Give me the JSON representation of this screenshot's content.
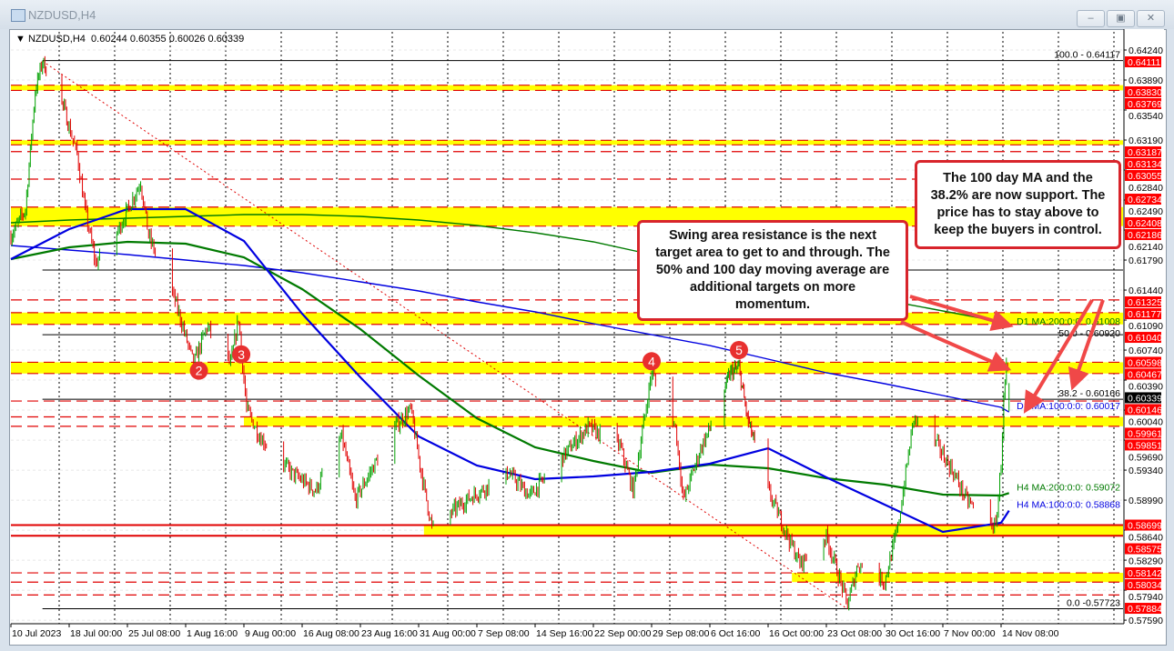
{
  "window": {
    "title": "NZDUSD,H4",
    "buttons": {
      "minimize": "minimize-icon",
      "restore": "restore-icon",
      "close": "close-icon"
    }
  },
  "chart_header": {
    "symbol": "NZDUSD,H4",
    "open": "0.60244",
    "high": "0.60355",
    "low": "0.60026",
    "close": "0.60339"
  },
  "annotations": [
    {
      "text": "Swing area resistance is the next target area to get to and through.  The 50% and 100 day moving average are additional targets on more momentum."
    },
    {
      "text": "The 100 day MA and the 38.2% are now support. The price has to stay above to keep the buyers in control."
    }
  ],
  "chart_data": {
    "type": "candlestick",
    "symbol": "NZDUSD",
    "timeframe": "H4",
    "grid": true,
    "ylim": [
      0.5759,
      0.6424
    ],
    "colors": {
      "up": "#00a000",
      "down": "#e00000",
      "zone": "#ffff00",
      "level": "#e00000",
      "ma_blue": "#0000e0",
      "ma_green": "#007a00",
      "trendline": "#e00000",
      "marker": "#e8302f",
      "price_label": "#ff0000",
      "last_price_label": "#000000"
    },
    "y_ticks": [
      "0.64240",
      "0.63890",
      "0.63540",
      "0.63190",
      "0.62840",
      "0.62490",
      "0.62140",
      "0.61790",
      "0.61440",
      "0.61090",
      "0.60740",
      "0.60390",
      "0.60040",
      "0.59690",
      "0.59340",
      "0.58990",
      "0.58640",
      "0.58290",
      "0.57940",
      "0.57590"
    ],
    "x_ticks": [
      {
        "label": "10 Jul 2023",
        "date": "2023-07-10T00:00"
      },
      {
        "label": "18 Jul 00:00",
        "date": "2023-07-18T00:00"
      },
      {
        "label": "25 Jul 08:00",
        "date": "2023-07-25T08:00"
      },
      {
        "label": "1 Aug 16:00",
        "date": "2023-08-01T16:00"
      },
      {
        "label": "9 Aug 00:00",
        "date": "2023-08-09T00:00"
      },
      {
        "label": "16 Aug 08:00",
        "date": "2023-08-16T08:00"
      },
      {
        "label": "23 Aug 16:00",
        "date": "2023-08-23T16:00"
      },
      {
        "label": "31 Aug 00:00",
        "date": "2023-08-31T00:00"
      },
      {
        "label": "7 Sep 08:00",
        "date": "2023-09-07T08:00"
      },
      {
        "label": "14 Sep 16:00",
        "date": "2023-09-14T16:00"
      },
      {
        "label": "22 Sep 00:00",
        "date": "2023-09-22T00:00"
      },
      {
        "label": "29 Sep 08:00",
        "date": "2023-09-29T08:00"
      },
      {
        "label": "6 Oct 16:00",
        "date": "2023-10-06T16:00"
      },
      {
        "label": "16 Oct 00:00",
        "date": "2023-10-16T00:00"
      },
      {
        "label": "23 Oct 08:00",
        "date": "2023-10-23T08:00"
      },
      {
        "label": "30 Oct 16:00",
        "date": "2023-10-30T16:00"
      },
      {
        "label": "7 Nov 00:00",
        "date": "2023-11-07T00:00"
      },
      {
        "label": "14 Nov 08:00",
        "date": "2023-11-14T08:00"
      }
    ],
    "price_path": [
      [
        "2023-07-10T00:00",
        0.6207
      ],
      [
        "2023-07-12T00:00",
        0.6238
      ],
      [
        "2023-07-13T08:00",
        0.6376
      ],
      [
        "2023-07-14T08:00",
        0.6411
      ],
      [
        "2023-07-17T08:00",
        0.6355
      ],
      [
        "2023-07-19T00:00",
        0.6302
      ],
      [
        "2023-07-20T00:00",
        0.6238
      ],
      [
        "2023-07-21T08:00",
        0.6175
      ],
      [
        "2023-07-24T08:00",
        0.6217
      ],
      [
        "2023-07-27T00:00",
        0.627
      ],
      [
        "2023-07-28T00:00",
        0.6207
      ],
      [
        "2023-07-31T08:00",
        0.6132
      ],
      [
        "2023-08-02T16:00",
        0.6058
      ],
      [
        "2023-08-04T08:00",
        0.6101
      ],
      [
        "2023-08-07T08:00",
        0.6058
      ],
      [
        "2023-08-08T08:00",
        0.6111
      ],
      [
        "2023-08-09T08:00",
        0.6005
      ],
      [
        "2023-08-11T00:00",
        0.5973
      ],
      [
        "2023-08-15T00:00",
        0.5931
      ],
      [
        "2023-08-18T00:00",
        0.591
      ],
      [
        "2023-08-21T08:00",
        0.5973
      ],
      [
        "2023-08-23T00:00",
        0.5899
      ],
      [
        "2023-08-28T00:00",
        0.5984
      ],
      [
        "2023-08-30T00:00",
        0.6005
      ],
      [
        "2023-08-31T08:00",
        0.5931
      ],
      [
        "2023-09-01T16:00",
        0.5867
      ],
      [
        "2023-09-06T00:00",
        0.5899
      ],
      [
        "2023-09-11T08:00",
        0.5931
      ],
      [
        "2023-09-14T00:00",
        0.5904
      ],
      [
        "2023-09-19T08:00",
        0.5963
      ],
      [
        "2023-09-21T08:00",
        0.5984
      ],
      [
        "2023-09-25T08:00",
        0.5963
      ],
      [
        "2023-09-27T00:00",
        0.591
      ],
      [
        "2023-09-29T08:00",
        0.6048
      ],
      [
        "2023-10-02T08:00",
        0.5984
      ],
      [
        "2023-10-03T08:00",
        0.5899
      ],
      [
        "2023-10-05T16:00",
        0.5963
      ],
      [
        "2023-10-10T00:00",
        0.6048
      ],
      [
        "2023-10-11T08:00",
        0.6053
      ],
      [
        "2023-10-12T16:00",
        0.5995
      ],
      [
        "2023-10-16T00:00",
        0.591
      ],
      [
        "2023-10-18T00:00",
        0.5867
      ],
      [
        "2023-10-20T00:00",
        0.5825
      ],
      [
        "2023-10-23T08:00",
        0.5857
      ],
      [
        "2023-10-26T00:00",
        0.5777
      ],
      [
        "2023-10-27T08:00",
        0.5825
      ],
      [
        "2023-10-30T16:00",
        0.5804
      ],
      [
        "2023-11-01T08:00",
        0.5867
      ],
      [
        "2023-11-03T08:00",
        0.5995
      ],
      [
        "2023-11-06T08:00",
        0.5963
      ],
      [
        "2023-11-08T08:00",
        0.5931
      ],
      [
        "2023-11-10T00:00",
        0.5899
      ],
      [
        "2023-11-13T16:00",
        0.5867
      ],
      [
        "2023-11-14T08:00",
        0.5942
      ],
      [
        "2023-11-14T16:00",
        0.6016
      ],
      [
        "2023-11-15T00:00",
        0.6053
      ],
      [
        "2023-11-15T08:00",
        0.60339
      ]
    ],
    "last_price": "0.60339",
    "fib_levels": [
      {
        "price": 0.64117,
        "label": "100.0 - 0.64117"
      },
      {
        "price": 0.61674,
        "label": ""
      },
      {
        "price": 0.6092,
        "label": "50.0 - 0.60920"
      },
      {
        "price": 0.60166,
        "label": "38.2 - 0.60166"
      },
      {
        "price": 0.57723,
        "label": "0.0 -0.57723"
      }
    ],
    "fib_from": "2023-07-14T08:00",
    "zones": [
      {
        "top": 0.6383,
        "bottom": 0.63769,
        "from": "2023-07-10T00:00"
      },
      {
        "top": 0.63187,
        "bottom": 0.63134,
        "from": "2023-07-10T00:00"
      },
      {
        "top": 0.62408,
        "bottom": 0.62186,
        "from": "2023-07-10T00:00"
      },
      {
        "top": 0.61177,
        "bottom": 0.6104,
        "from": "2023-07-10T00:00"
      },
      {
        "top": 0.60598,
        "bottom": 0.60467,
        "from": "2023-07-10T00:00"
      },
      {
        "top": 0.59961,
        "bottom": 0.59851,
        "from": "2023-08-09T00:00"
      },
      {
        "top": 0.58699,
        "bottom": 0.58575,
        "from": "2023-08-31T16:00"
      },
      {
        "top": 0.58142,
        "bottom": 0.58034,
        "from": "2023-10-19T00:00"
      }
    ],
    "horizontal_levels": [
      {
        "price": 0.64111,
        "label": "0.64111",
        "style": "none"
      },
      {
        "price": 0.6383,
        "label": "0.63830",
        "style": "dashed"
      },
      {
        "price": 0.63769,
        "label": "0.63769",
        "style": "dashed"
      },
      {
        "price": 0.63187,
        "label": "0.63187",
        "style": "dashed"
      },
      {
        "price": 0.63134,
        "label": "0.63134",
        "style": "dashed"
      },
      {
        "price": 0.63055,
        "label": "0.63055",
        "style": "dashed"
      },
      {
        "price": 0.62734,
        "label": "0.62734",
        "style": "dashed"
      },
      {
        "price": 0.62408,
        "label": "0.62408",
        "style": "dashed"
      },
      {
        "price": 0.62186,
        "label": "0.62186",
        "style": "dashed"
      },
      {
        "price": 0.61325,
        "label": "0.61325",
        "style": "dashed"
      },
      {
        "price": 0.61177,
        "label": "0.61177",
        "style": "dashed"
      },
      {
        "price": 0.6104,
        "label": "0.61040",
        "style": "dashed"
      },
      {
        "price": 0.60598,
        "label": "0.60598",
        "style": "dashed"
      },
      {
        "price": 0.60467,
        "label": "0.60467",
        "style": "dashed"
      },
      {
        "price": 0.60146,
        "label": "0.60146",
        "style": "dashed"
      },
      {
        "price": 0.59961,
        "label": "0.59961",
        "style": "dashed"
      },
      {
        "price": 0.59851,
        "label": "0.59851",
        "style": "dashed"
      },
      {
        "price": 0.58699,
        "label": "0.58699",
        "style": "solid"
      },
      {
        "price": 0.58575,
        "label": "0.58575",
        "style": "solid"
      },
      {
        "price": 0.58142,
        "label": "0.58142",
        "style": "dashed"
      },
      {
        "price": 0.58034,
        "label": "0.58034",
        "style": "dashed"
      },
      {
        "price": 0.57884,
        "label": "0.57884",
        "style": "dashed"
      }
    ],
    "moving_averages": [
      {
        "label": "D1 MA:200:0:0: 0.61008",
        "color": "#007a00",
        "weight": "thin",
        "values": [
          0.62225,
          0.62257,
          0.62278,
          0.62299,
          0.62321,
          0.62321,
          0.62299,
          0.62257,
          0.62193,
          0.62109,
          0.62002,
          0.61854,
          0.61716,
          0.61589,
          0.61451,
          0.61324,
          0.61197,
          0.61069,
          0.61008
        ]
      },
      {
        "label": "D1 MA:100:0:0: 0.60017",
        "color": "#0000e0",
        "weight": "thin",
        "values": [
          0.6196,
          0.61907,
          0.61854,
          0.6179,
          0.61727,
          0.61642,
          0.61536,
          0.6143,
          0.61303,
          0.61186,
          0.61048,
          0.6092,
          0.60793,
          0.60634,
          0.60475,
          0.60348,
          0.6021,
          0.60072,
          0.60017
        ]
      },
      {
        "label": "H4 MA:200:0:0: 0.59072",
        "color": "#007a00",
        "weight": "thick",
        "values": [
          0.61801,
          0.61939,
          0.62002,
          0.61981,
          0.61822,
          0.61451,
          0.60984,
          0.60444,
          0.59945,
          0.59606,
          0.59447,
          0.59309,
          0.59404,
          0.59362,
          0.59245,
          0.59171,
          0.59054,
          0.59044,
          0.59072
        ]
      },
      {
        "label": "H4 MA:100:0:0: 0.58868",
        "color": "#0000e0",
        "weight": "thick",
        "values": [
          0.61801,
          0.62151,
          0.62384,
          0.62384,
          0.62013,
          0.61165,
          0.60422,
          0.59733,
          0.59394,
          0.59235,
          0.59267,
          0.5932,
          0.59415,
          0.59595,
          0.59256,
          0.58938,
          0.5862,
          0.58726,
          0.58868
        ]
      }
    ],
    "ma_dates": [
      "2023-07-10T00:00",
      "2023-07-18T00:00",
      "2023-07-25T08:00",
      "2023-08-01T16:00",
      "2023-08-09T00:00",
      "2023-08-16T08:00",
      "2023-08-23T16:00",
      "2023-08-31T00:00",
      "2023-09-07T08:00",
      "2023-09-14T16:00",
      "2023-09-22T00:00",
      "2023-09-29T08:00",
      "2023-10-06T16:00",
      "2023-10-16T00:00",
      "2023-10-23T08:00",
      "2023-10-30T16:00",
      "2023-11-07T00:00",
      "2023-11-14T08:00",
      "2023-11-15T08:00"
    ],
    "trendline": {
      "from": [
        "2023-07-14T08:00",
        0.6411
      ],
      "to": [
        "2023-10-26T00:00",
        0.5772
      ]
    },
    "swing_markers": [
      {
        "label": "2",
        "date": "2023-08-03T08:00",
        "price": 0.605
      },
      {
        "label": "3",
        "date": "2023-08-08T16:00",
        "price": 0.6069
      },
      {
        "label": "4",
        "date": "2023-09-29T08:00",
        "price": 0.6061
      },
      {
        "label": "5",
        "date": "2023-10-11T08:00",
        "price": 0.6074
      }
    ]
  }
}
